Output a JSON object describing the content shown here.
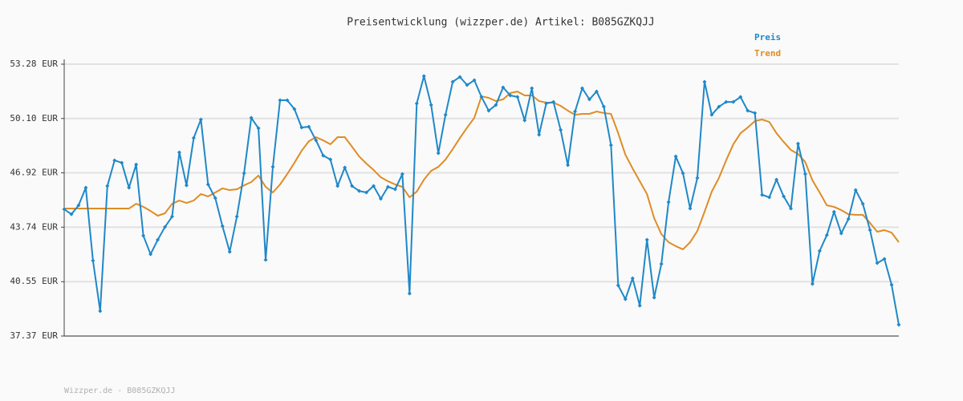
{
  "chart_data": {
    "type": "line",
    "title": "Preisentwicklung (wizzper.de) Artikel: B085GZKQJJ",
    "footer": "Wizzper.de - B085GZKQJJ",
    "ylim": [
      37.37,
      53.28
    ],
    "yticks": [
      {
        "value": 37.37,
        "label": "37.37 EUR"
      },
      {
        "value": 40.55,
        "label": "40.55 EUR"
      },
      {
        "value": 43.74,
        "label": "43.74 EUR"
      },
      {
        "value": 46.92,
        "label": "46.92 EUR"
      },
      {
        "value": 50.1,
        "label": "50.10 EUR"
      },
      {
        "value": 53.28,
        "label": "53.28 EUR"
      }
    ],
    "grid": true,
    "legend": "top-right",
    "series": [
      {
        "name": "Preis",
        "color": "#1f88c8",
        "markers": true,
        "values": [
          44.79,
          44.5,
          45.02,
          46.05,
          41.78,
          38.83,
          46.15,
          47.65,
          47.51,
          46.05,
          47.41,
          43.24,
          42.16,
          43.0,
          43.75,
          44.36,
          48.12,
          46.19,
          48.96,
          50.04,
          46.24,
          45.44,
          43.8,
          42.3,
          44.36,
          46.9,
          50.14,
          49.53,
          41.83,
          47.27,
          51.17,
          51.17,
          50.65,
          49.57,
          49.62,
          48.82,
          47.93,
          47.7,
          46.15,
          47.23,
          46.15,
          45.86,
          45.77,
          46.15,
          45.4,
          46.1,
          45.96,
          46.85,
          39.86,
          50.98,
          52.58,
          50.89,
          48.07,
          50.32,
          52.25,
          52.53,
          52.06,
          52.34,
          51.36,
          50.56,
          50.89,
          51.92,
          51.45,
          51.36,
          49.99,
          51.87,
          49.15,
          50.98,
          51.07,
          49.43,
          47.37,
          50.51,
          51.87,
          51.22,
          51.68,
          50.79,
          48.54,
          40.33,
          39.53,
          40.75,
          39.15,
          43.0,
          39.62,
          41.59,
          45.21,
          47.88,
          46.9,
          44.83,
          46.62,
          52.25,
          50.32,
          50.79,
          51.07,
          51.07,
          51.36,
          50.56,
          50.42,
          45.63,
          45.49,
          46.52,
          45.54,
          44.83,
          48.63,
          46.85,
          40.42,
          42.35,
          43.28,
          44.64,
          43.38,
          44.22,
          45.91,
          45.11,
          43.57,
          41.64,
          41.88,
          40.37,
          38.03
        ]
      },
      {
        "name": "Trend",
        "color": "#e08c24",
        "markers": false,
        "values": [
          44.83,
          44.83,
          44.83,
          44.83,
          44.83,
          44.83,
          44.83,
          44.83,
          44.83,
          44.83,
          45.11,
          44.93,
          44.69,
          44.41,
          44.55,
          45.11,
          45.3,
          45.16,
          45.3,
          45.68,
          45.54,
          45.77,
          46.01,
          45.91,
          45.96,
          46.19,
          46.38,
          46.76,
          46.1,
          45.77,
          46.24,
          46.85,
          47.51,
          48.21,
          48.77,
          49.01,
          48.82,
          48.59,
          49.01,
          49.01,
          48.45,
          47.88,
          47.46,
          47.09,
          46.66,
          46.43,
          46.24,
          46.1,
          45.49,
          45.82,
          46.52,
          47.04,
          47.27,
          47.7,
          48.31,
          48.96,
          49.57,
          50.14,
          51.4,
          51.31,
          51.12,
          51.22,
          51.59,
          51.68,
          51.45,
          51.45,
          51.12,
          51.03,
          51.03,
          50.84,
          50.56,
          50.32,
          50.37,
          50.37,
          50.51,
          50.42,
          50.37,
          49.24,
          47.98,
          47.18,
          46.43,
          45.68,
          44.27,
          43.33,
          42.86,
          42.63,
          42.44,
          42.86,
          43.52,
          44.64,
          45.82,
          46.62,
          47.65,
          48.59,
          49.24,
          49.57,
          49.95,
          50.04,
          49.9,
          49.24,
          48.73,
          48.26,
          48.02,
          47.55,
          46.48,
          45.77,
          45.02,
          44.93,
          44.74,
          44.5,
          44.46,
          44.46,
          43.99,
          43.47,
          43.57,
          43.42,
          42.86
        ]
      }
    ]
  }
}
